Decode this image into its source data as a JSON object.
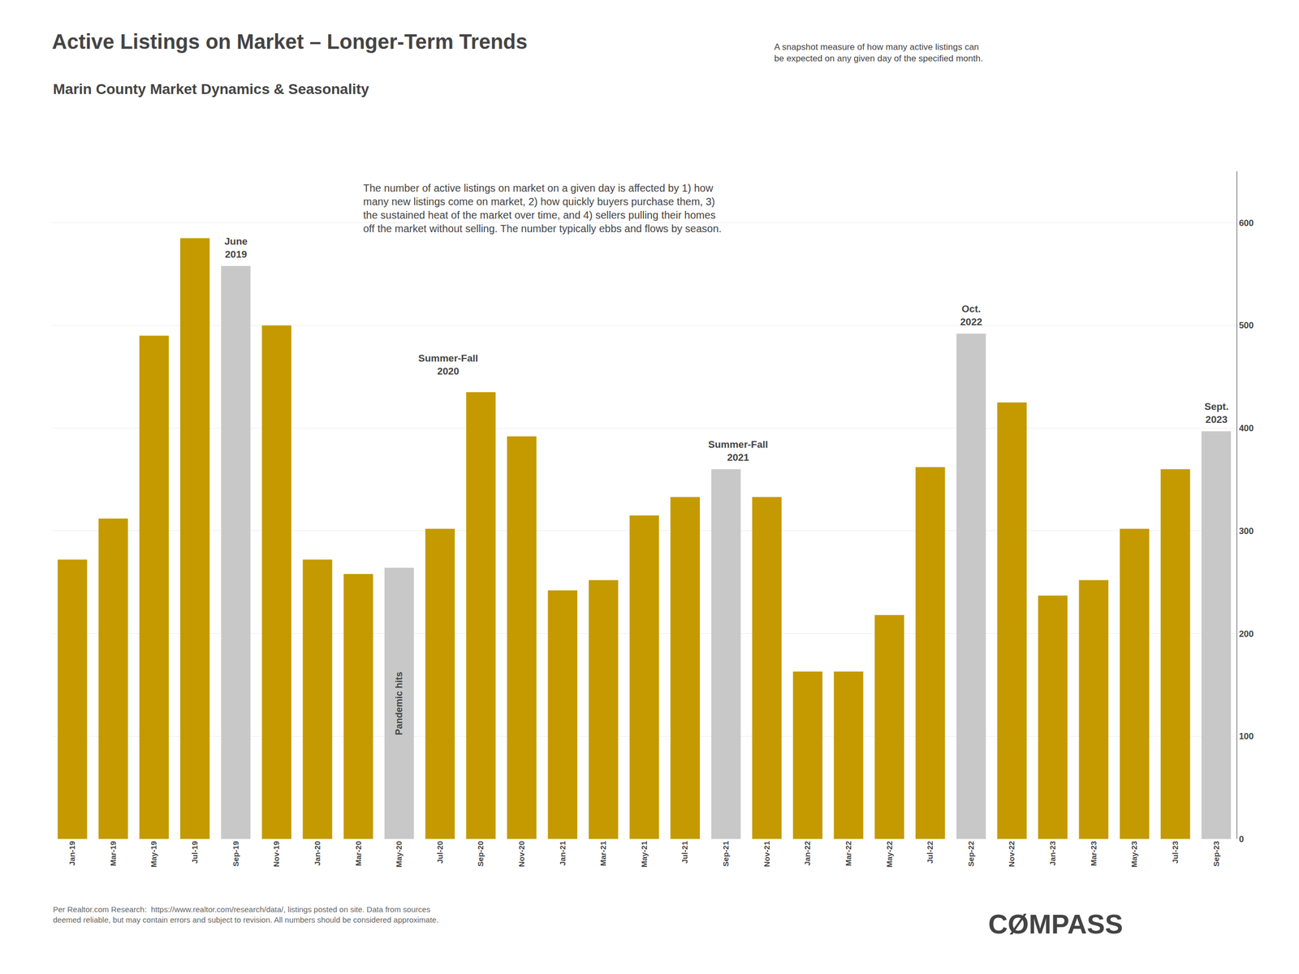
{
  "chart_data": {
    "type": "bar",
    "title": "Active Listings on Market – Longer-Term Trends",
    "subtitle": "Marin County Market Dynamics & Seasonality",
    "annotations": [
      "A snapshot measure of how many active listings can\nbe expected on any given day of the specified month.",
      "The number of active listings on market on a given day is affected by 1) how\nmany new listings come on market, 2) how quickly buyers purchase them, 3)\nthe sustained heat of the market over time, and 4) sellers pulling their homes\noff the market without selling. The number typically ebbs and flows by season.",
      "June\n2019",
      "Pandemic hits",
      "Summer-Fall\n2020",
      "Summer-Fall\n2021",
      "Oct.\n2022",
      "Sept.\n2023",
      "Per Realtor.com Research:  https://www.realtor.com/research/data/, listings posted on site. Data from sources\ndeemed reliable, but may contain errors and subject to revision. All numbers should be considered approximate.",
      "CØMPASS"
    ],
    "categories": [
      "Jan-19",
      "Mar-19",
      "May-19",
      "Jul-19",
      "Sep-19",
      "Nov-19",
      "Jan-20",
      "Mar-20",
      "May-20",
      "Jul-20",
      "Sep-20",
      "Nov-20",
      "Jan-21",
      "Mar-21",
      "May-21",
      "Jul-21",
      "Sep-21",
      "Nov-21",
      "Jan-22",
      "Mar-22",
      "May-22",
      "Jul-22",
      "Sep-22",
      "Nov-22",
      "Jan-23",
      "Mar-23",
      "May-23",
      "Jul-23",
      "Sep-23"
    ],
    "values": [
      272,
      312,
      490,
      585,
      558,
      500,
      272,
      258,
      264,
      302,
      435,
      392,
      242,
      252,
      315,
      333,
      360,
      333,
      163,
      163,
      218,
      362,
      492,
      425,
      237,
      252,
      302,
      360,
      397
    ],
    "colors": [
      "#C49A00",
      "#C49A00",
      "#C49A00",
      "#C49A00",
      "#C8C8C8",
      "#C49A00",
      "#C49A00",
      "#C49A00",
      "#C8C8C8",
      "#C49A00",
      "#C49A00",
      "#C49A00",
      "#C49A00",
      "#C49A00",
      "#C49A00",
      "#C49A00",
      "#C8C8C8",
      "#C49A00",
      "#C49A00",
      "#C49A00",
      "#C49A00",
      "#C49A00",
      "#C8C8C8",
      "#C49A00",
      "#C49A00",
      "#C49A00",
      "#C49A00",
      "#C49A00",
      "#C8C8C8"
    ],
    "ylim": [
      0,
      650
    ],
    "yticks": [
      0,
      100,
      200,
      300,
      400,
      500,
      600
    ],
    "grid": true
  }
}
